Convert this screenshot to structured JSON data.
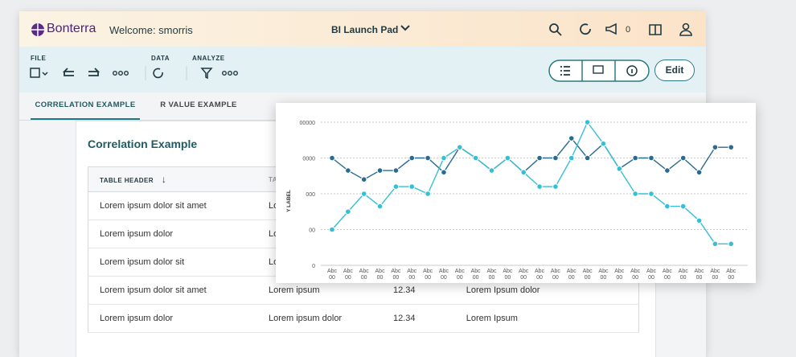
{
  "header": {
    "brand": "Bonterra",
    "welcome": "Welcome: smorris",
    "app": "BI Launch Pad",
    "notifications": "0"
  },
  "toolbar": {
    "groups": [
      "FILE",
      "DATA",
      "ANALYZE"
    ],
    "edit": "Edit"
  },
  "tabs": [
    "CORRELATION EXAMPLE",
    "R VALUE EXAMPLE"
  ],
  "section_title": "Correlation Example",
  "table": {
    "header": [
      "TABLE HEADER",
      "TABLE"
    ],
    "rows": [
      [
        "Lorem ipsum dolor sit amet",
        "Lorem"
      ],
      [
        "Lorem ipsum dolor",
        "Lorem"
      ],
      [
        "Lorem ipsum dolor sit",
        "Lorem"
      ],
      [
        "Lorem ipsum dolor sit amet",
        "Lorem ipsum",
        "12.34",
        "Lorem Ipsum dolor"
      ],
      [
        "Lorem ipsum dolor",
        "Lorem ipsum dolor",
        "12.34",
        "Lorem Ipsum"
      ]
    ]
  },
  "chart_data": {
    "type": "line",
    "y_label": "Y LABEL",
    "categories": [
      "Abc 00",
      "Abc 00",
      "Abc 00",
      "Abc 00",
      "Abc 00",
      "Abc 00",
      "Abc 00",
      "Abc 00",
      "Abc 00",
      "Abc 00",
      "Abc 00",
      "Abc 00",
      "Abc 00",
      "Abc 00",
      "Abc 00",
      "Abc 00",
      "Abc 00",
      "Abc 00",
      "Abc 00",
      "Abc 00",
      "Abc 00",
      "Abc 00",
      "Abc 00",
      "Abc 00",
      "Abc 00",
      "Abc 00"
    ],
    "series": [
      {
        "color": "#2b6a8f",
        "values": [
          3,
          2.65,
          2.4,
          2.65,
          2.65,
          3,
          3,
          2.6,
          3.3,
          3,
          2.65,
          3,
          2.6,
          3,
          3,
          3.55,
          3,
          3.4,
          2.7,
          3,
          3,
          2.65,
          3,
          2.6,
          3.3,
          3.3
        ]
      },
      {
        "color": "#35bfd6",
        "values": [
          1,
          1.5,
          2,
          1.65,
          2.2,
          2.2,
          2,
          3,
          3.3,
          3,
          2.65,
          3,
          2.6,
          2.2,
          2.2,
          3,
          4,
          3.4,
          2.7,
          2,
          2,
          1.65,
          1.65,
          1.25,
          0.6,
          0.6
        ]
      }
    ],
    "ylim": [
      0,
      4
    ],
    "yticks": [
      0,
      {
        "value": 1,
        "label": "00"
      },
      {
        "value": 2,
        "label": "000"
      },
      {
        "value": 3,
        "label": "0000"
      },
      {
        "value": 4,
        "label": "00000"
      }
    ],
    "grid": true
  }
}
